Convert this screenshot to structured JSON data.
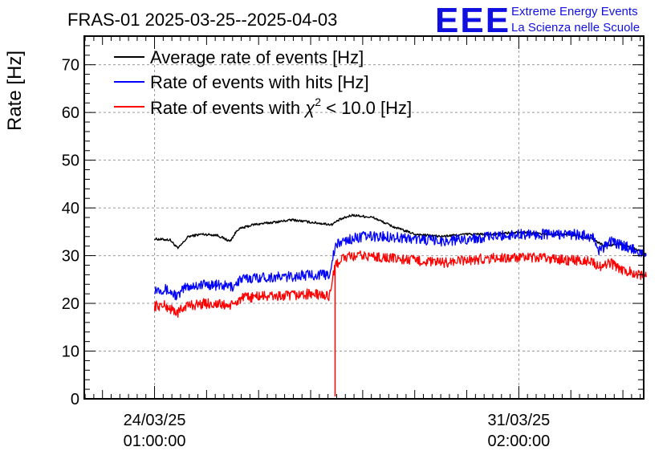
{
  "chart_data": {
    "type": "line",
    "title": "FRAS-01 2025-03-25--2025-04-03",
    "ylabel": "Rate [Hz]",
    "xlabel": "",
    "ylim": [
      0,
      76
    ],
    "yticks": [
      0,
      10,
      20,
      30,
      40,
      50,
      60,
      70
    ],
    "ytick_labels": [
      "0",
      "10",
      "20",
      "30",
      "40",
      "50",
      "60",
      "70"
    ],
    "xlim": [
      -1.35,
      9.4
    ],
    "xticks": [
      {
        "x": 0,
        "date": "24/03/25",
        "time": "01:00:00"
      },
      {
        "x": 7,
        "date": "31/03/25",
        "time": "02:00:00"
      }
    ],
    "grid": true,
    "legend_position": "top-left",
    "series": [
      {
        "name": "Average rate of events [Hz]",
        "color": "#000000",
        "x": [
          0.0,
          0.3,
          0.45,
          0.65,
          0.9,
          1.2,
          1.45,
          1.6,
          1.9,
          2.3,
          2.65,
          3.0,
          3.4,
          3.55,
          3.8,
          4.2,
          4.6,
          5.0,
          5.5,
          6.0,
          6.5,
          7.0,
          7.5,
          8.0,
          8.4,
          8.65,
          8.9,
          9.2,
          9.45
        ],
        "values": [
          33.5,
          33.3,
          31.5,
          34.0,
          34.5,
          34.3,
          33.0,
          35.5,
          36.5,
          37.0,
          37.5,
          37.0,
          36.5,
          37.5,
          38.5,
          38.0,
          36.0,
          34.5,
          34.0,
          34.5,
          34.5,
          35.0,
          34.5,
          34.5,
          33.5,
          32.0,
          32.5,
          31.5,
          30.5
        ]
      },
      {
        "name": "Rate of events with hits [Hz]",
        "color": "#0000ff",
        "x": [
          0.0,
          0.2,
          0.45,
          0.6,
          1.0,
          1.5,
          1.65,
          2.0,
          2.5,
          3.0,
          3.35,
          3.48,
          3.6,
          4.0,
          4.5,
          5.0,
          5.5,
          6.0,
          6.5,
          7.0,
          7.5,
          8.0,
          8.4,
          8.55,
          8.75,
          9.0,
          9.2,
          9.45
        ],
        "values": [
          23.0,
          23.0,
          21.5,
          23.5,
          24.0,
          23.5,
          25.0,
          25.5,
          25.5,
          26.0,
          26.0,
          32.0,
          33.0,
          34.0,
          34.0,
          33.5,
          33.0,
          33.5,
          34.0,
          34.5,
          34.5,
          34.5,
          34.0,
          31.0,
          33.0,
          32.0,
          31.5,
          30.0
        ]
      },
      {
        "name": "Rate of events with χ² < 10.0 [Hz]",
        "color": "#ff0000",
        "x": [
          0.0,
          0.2,
          0.45,
          0.6,
          1.0,
          1.5,
          1.65,
          2.0,
          2.5,
          3.0,
          3.35,
          3.48,
          3.6,
          4.0,
          4.5,
          5.0,
          5.5,
          6.0,
          6.5,
          7.0,
          7.5,
          8.0,
          8.4,
          8.55,
          8.75,
          9.0,
          9.2,
          9.45
        ],
        "values": [
          19.5,
          19.5,
          18.0,
          19.5,
          20.0,
          19.5,
          21.0,
          21.5,
          21.5,
          22.0,
          21.5,
          28.0,
          29.5,
          30.0,
          29.5,
          29.0,
          28.5,
          29.0,
          29.5,
          29.5,
          29.5,
          29.0,
          29.0,
          27.5,
          28.5,
          27.0,
          26.5,
          25.5
        ]
      }
    ],
    "dropout": {
      "x": 3.47,
      "min": 0.5,
      "series_color": "#ff0000"
    }
  },
  "legend": {
    "entries": [
      {
        "label": "Average rate of events [Hz]",
        "color": "#000000",
        "key": "avg"
      },
      {
        "label": "Rate of events with hits [Hz]",
        "color": "#0000ff",
        "key": "hits"
      },
      {
        "label_prefix": "Rate of events with ",
        "label_chi": "χ",
        "label_sup": "2",
        "label_suffix": " < 10.0 [Hz]",
        "color": "#ff0000",
        "key": "chi2"
      }
    ]
  },
  "logo": {
    "mark": "EEE",
    "line1": "Extreme Energy Events",
    "line2": "La Scienza nelle Scuole",
    "color": "#1010e0"
  }
}
